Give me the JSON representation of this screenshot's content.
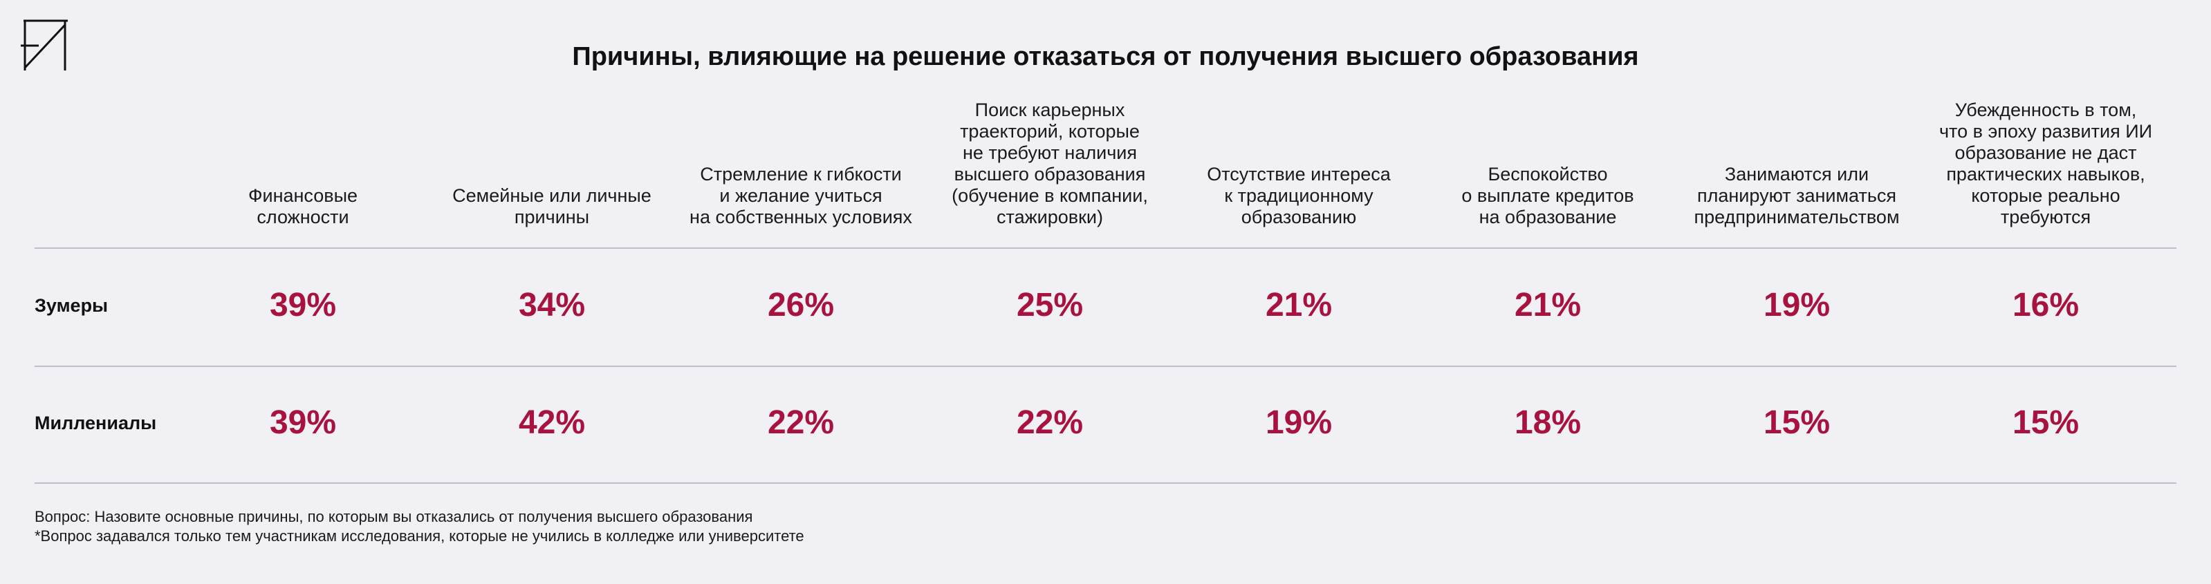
{
  "chart_data": {
    "type": "table",
    "title": "Причины, влияющие на решение отказаться от получения высшего образования",
    "accent_color": "#a8123e",
    "columns": [
      [
        "Финансовые",
        "сложности"
      ],
      [
        "Семейные или личные",
        "причины"
      ],
      [
        "Стремление к гибкости",
        "и желание учиться",
        "на собственных условиях"
      ],
      [
        "Поиск карьерных",
        "траекторий, которые",
        "не требуют наличия",
        "высшего образования",
        "(обучение в компании,",
        "стажировки)"
      ],
      [
        "Отсутствие интереса",
        "к традиционному",
        "образованию"
      ],
      [
        "Беспокойство",
        "о выплате кредитов",
        "на образование"
      ],
      [
        "Занимаются или",
        "планируют заниматься",
        "предпринимательством"
      ],
      [
        "Убежденность в том,",
        "что в эпоху развития ИИ",
        "образование не даст",
        "практических навыков,",
        "которые реально",
        "требуются"
      ]
    ],
    "rows": [
      {
        "label": "Зумеры",
        "values": [
          "39%",
          "34%",
          "26%",
          "25%",
          "21%",
          "21%",
          "19%",
          "16%"
        ]
      },
      {
        "label": "Миллениалы",
        "values": [
          "39%",
          "42%",
          "22%",
          "22%",
          "19%",
          "18%",
          "15%",
          "15%"
        ]
      }
    ]
  },
  "footnotes": [
    "Вопрос: Назовите основные причины, по которым вы отказались от получения высшего образования",
    "*Вопрос задавался только тем участникам исследования, которые не учились в колледже или университете"
  ],
  "logo": {
    "icon": "brand-monogram-icon",
    "color": "#111111"
  }
}
